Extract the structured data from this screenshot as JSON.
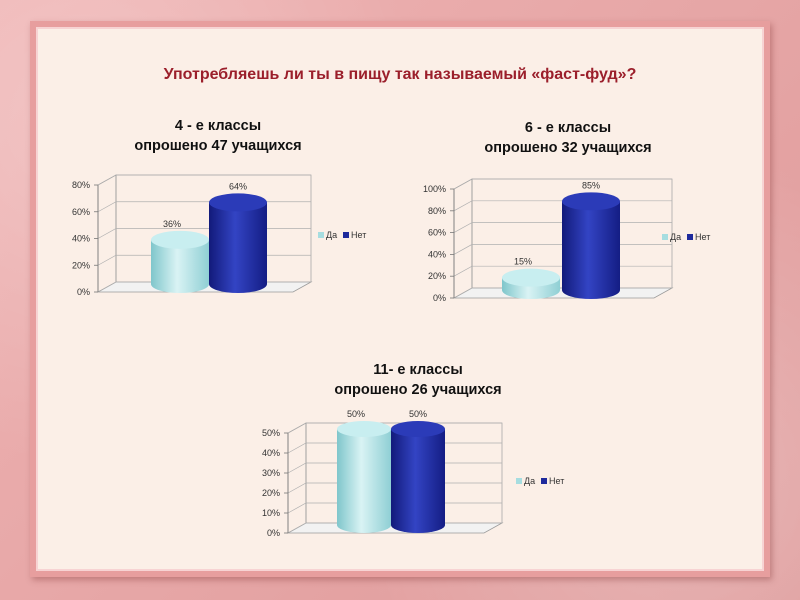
{
  "slide": {
    "question": "Употребляешь ли ты в пищу так называемый «фаст-фуд»?"
  },
  "colors": {
    "da": "#a6dde0",
    "net": "#1e2a9c"
  },
  "chart_data": [
    {
      "type": "bar",
      "title": [
        "4 - е классы",
        "опрошено 47 учащихся"
      ],
      "categories": [
        "Да",
        "Нет"
      ],
      "values": [
        36,
        64
      ],
      "value_labels": [
        "36%",
        "64%"
      ],
      "ylim": [
        0,
        80
      ],
      "yticks": [
        "0%",
        "20%",
        "40%",
        "60%",
        "80%"
      ],
      "legend": [
        "Да",
        "Нет"
      ],
      "legend_position": "right"
    },
    {
      "type": "bar",
      "title": [
        "6 - е классы",
        "опрошено 32 учащихся"
      ],
      "categories": [
        "Да",
        "Нет"
      ],
      "values": [
        15,
        85
      ],
      "value_labels": [
        "15%",
        "85%"
      ],
      "ylim": [
        0,
        100
      ],
      "yticks": [
        "0%",
        "20%",
        "40%",
        "60%",
        "80%",
        "100%"
      ],
      "legend": [
        "Да",
        "Нет"
      ],
      "legend_position": "right"
    },
    {
      "type": "bar",
      "title": [
        "11- е классы",
        "опрошено 26 учащихся"
      ],
      "categories": [
        "Да",
        "Нет"
      ],
      "values": [
        50,
        50
      ],
      "value_labels": [
        "50%",
        "50%"
      ],
      "ylim": [
        0,
        50
      ],
      "yticks": [
        "0%",
        "10%",
        "20%",
        "30%",
        "40%",
        "50%"
      ],
      "legend": [
        "Да",
        "Нет"
      ],
      "legend_position": "right"
    }
  ]
}
